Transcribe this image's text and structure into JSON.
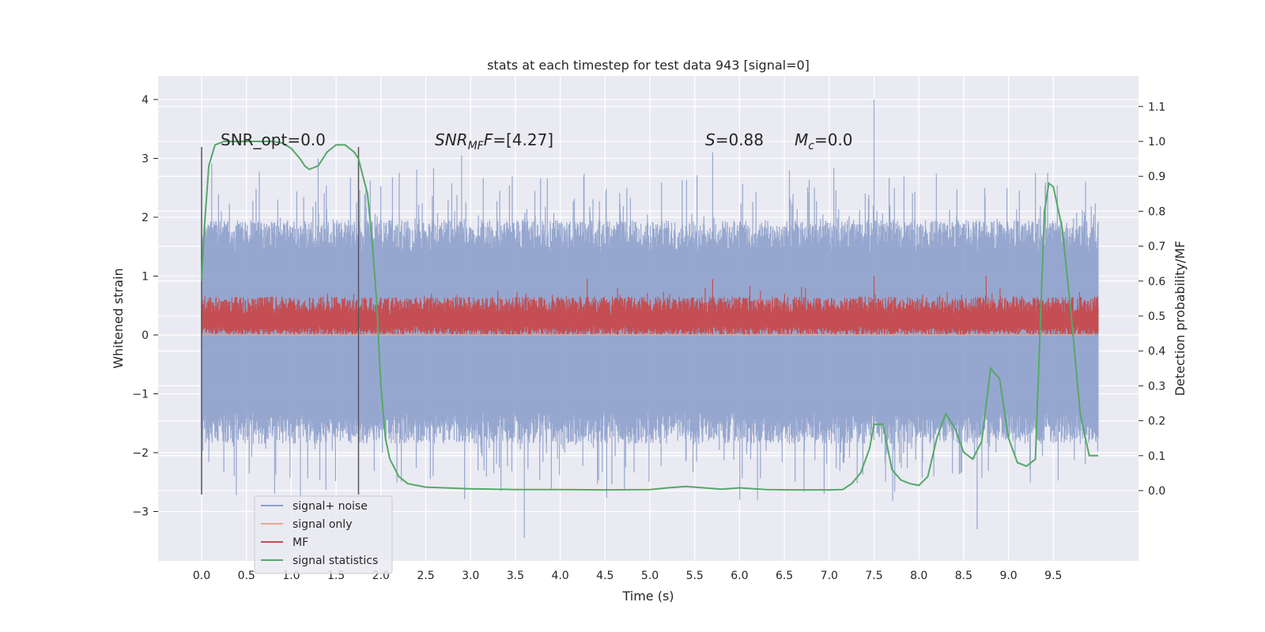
{
  "chart_data": {
    "type": "line",
    "title": "stats at each timestep for test data 943 [signal=0]",
    "xlabel": "Time (s)",
    "ylabel_left": "Whitened strain",
    "ylabel_right": "Detection probability/MF",
    "xlim": [
      -0.5,
      10.5
    ],
    "ylim_left": [
      -3.9,
      4.4
    ],
    "ylim_right": [
      -0.2,
      1.2
    ],
    "x_ticks": [
      "0.0",
      "0.5",
      "1.0",
      "1.5",
      "2.0",
      "2.5",
      "3.0",
      "3.5",
      "4.0",
      "4.5",
      "5.0",
      "5.5",
      "6.0",
      "6.5",
      "7.0",
      "7.5",
      "8.0",
      "8.5",
      "9.0",
      "9.5"
    ],
    "y_ticks_left": [
      "4",
      "3",
      "2",
      "1",
      "0",
      "−1",
      "−2",
      "−3"
    ],
    "y_ticks_right": [
      "1.1",
      "1.0",
      "0.9",
      "0.8",
      "0.7",
      "0.6",
      "0.5",
      "0.4",
      "0.3",
      "0.2",
      "0.1",
      "0.0"
    ],
    "grid": true,
    "annotations": {
      "snr_opt": "SNR_opt=0.0",
      "snr_mf_main": "SNR",
      "snr_mf_sub": "MF",
      "snr_mf_value": "=[4.27]",
      "s_main": "S",
      "s_value": "=0.88",
      "mc_main": "M",
      "mc_sub": "c",
      "mc_value": "=0.0"
    },
    "vertical_markers": [
      0.0,
      1.75
    ],
    "series": [
      {
        "name": "signal+ noise",
        "color": "#8da0cb",
        "x_range": [
          0.0,
          10.0
        ],
        "band_typical": [
          -1.5,
          1.6
        ],
        "spikes": [
          [
            7.5,
            4.0
          ],
          [
            1.3,
            3.0
          ],
          [
            2.9,
            3.05
          ],
          [
            5.7,
            3.1
          ],
          [
            3.6,
            -3.45
          ],
          [
            8.65,
            -3.3
          ],
          [
            9.3,
            2.75
          ],
          [
            6.2,
            -2.8
          ]
        ]
      },
      {
        "name": "signal only",
        "color": "#e8a88a",
        "values": "zero"
      },
      {
        "name": "MF",
        "color": "#c44e52",
        "x_range": [
          0.0,
          10.0
        ],
        "band_typical": [
          0.0,
          0.6
        ],
        "peaks": [
          [
            4.3,
            0.95
          ],
          [
            5.7,
            0.95
          ],
          [
            7.5,
            1.0
          ],
          [
            8.75,
            1.0
          ]
        ]
      },
      {
        "name": "signal statistics",
        "color": "#55a868",
        "axis": "right",
        "x": [
          0.0,
          0.03,
          0.08,
          0.15,
          0.25,
          0.4,
          0.6,
          0.8,
          0.9,
          1.0,
          1.1,
          1.15,
          1.2,
          1.3,
          1.4,
          1.5,
          1.6,
          1.7,
          1.75,
          1.8,
          1.85,
          1.9,
          1.95,
          2.0,
          2.05,
          2.1,
          2.2,
          2.3,
          2.5,
          3.0,
          3.5,
          4.0,
          4.5,
          5.0,
          5.2,
          5.4,
          5.6,
          5.8,
          6.0,
          6.3,
          6.6,
          7.0,
          7.15,
          7.25,
          7.35,
          7.45,
          7.5,
          7.6,
          7.7,
          7.8,
          7.9,
          8.0,
          8.1,
          8.2,
          8.3,
          8.4,
          8.5,
          8.6,
          8.7,
          8.8,
          8.9,
          9.0,
          9.1,
          9.2,
          9.3,
          9.4,
          9.45,
          9.5,
          9.6,
          9.7,
          9.8,
          9.9,
          10.0
        ],
        "y": [
          0.6,
          0.75,
          0.93,
          0.99,
          1.0,
          1.0,
          1.0,
          1.0,
          0.995,
          0.98,
          0.95,
          0.93,
          0.92,
          0.93,
          0.97,
          0.99,
          0.99,
          0.97,
          0.95,
          0.9,
          0.85,
          0.72,
          0.55,
          0.3,
          0.15,
          0.09,
          0.04,
          0.02,
          0.01,
          0.005,
          0.003,
          0.003,
          0.002,
          0.003,
          0.008,
          0.012,
          0.008,
          0.004,
          0.008,
          0.003,
          0.002,
          0.002,
          0.003,
          0.02,
          0.05,
          0.12,
          0.19,
          0.19,
          0.06,
          0.03,
          0.02,
          0.015,
          0.04,
          0.15,
          0.22,
          0.18,
          0.11,
          0.09,
          0.14,
          0.35,
          0.32,
          0.15,
          0.08,
          0.07,
          0.09,
          0.8,
          0.88,
          0.87,
          0.75,
          0.5,
          0.22,
          0.1,
          0.1
        ]
      }
    ],
    "legend": {
      "placement": "lower-left"
    }
  }
}
